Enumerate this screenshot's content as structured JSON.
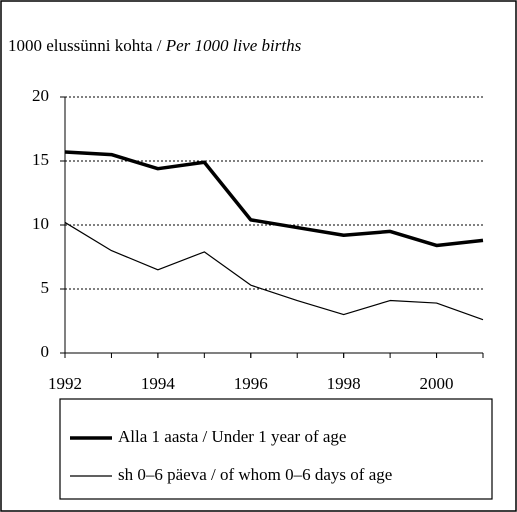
{
  "chart_data": {
    "type": "line",
    "ylabel": {
      "fi": "1000 elussünni kohta /",
      "en": "Per 1000 live births"
    },
    "x": [
      1992,
      1993,
      1994,
      1995,
      1996,
      1997,
      1998,
      1999,
      2000,
      2001
    ],
    "xlim": [
      1992,
      2001
    ],
    "xticks": [
      1992,
      1994,
      1996,
      1998,
      2000
    ],
    "ylim": [
      0,
      20
    ],
    "yticks": [
      0,
      5,
      10,
      15,
      20
    ],
    "grid": true,
    "series": [
      {
        "name": "Alla 1 aasta / Under 1 year of age",
        "color": "#000000",
        "width": 3.5,
        "values": [
          15.7,
          15.5,
          14.4,
          14.9,
          10.4,
          9.8,
          9.2,
          9.5,
          8.4,
          8.8
        ]
      },
      {
        "name": "sh 0–6 päeva / of whom 0–6 days of age",
        "color": "#000000",
        "width": 1.2,
        "values": [
          10.2,
          8.0,
          6.5,
          7.9,
          5.3,
          4.1,
          3.0,
          4.1,
          3.9,
          2.6
        ]
      }
    ]
  }
}
